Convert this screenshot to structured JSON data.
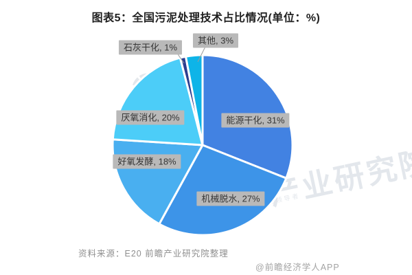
{
  "title": "图表5：全国污泥处理技术占比情况(单位：%)",
  "chart_data": {
    "type": "pie",
    "title": "图表5：全国污泥处理技术占比情况(单位：%)",
    "unit": "%",
    "start_angle_deg": 0,
    "direction": "clockwise",
    "slices": [
      {
        "label": "能源干化",
        "value": 31,
        "color": "#4282E2"
      },
      {
        "label": "机械脱水",
        "value": 27,
        "color": "#3D94E8"
      },
      {
        "label": "好氧发酵",
        "value": 18,
        "color": "#49AFF0"
      },
      {
        "label": "厌氧消化",
        "value": 20,
        "color": "#4CCDF8"
      },
      {
        "label": "石灰干化",
        "value": 1,
        "color": "#2C3E90"
      },
      {
        "label": "其他",
        "value": 3,
        "color": "#0EB4E8"
      }
    ],
    "label_format": "{label}, {value}%",
    "callout_bg": "#B9B9B9",
    "callout_text_color": "#363636",
    "legend": "none",
    "grid": false
  },
  "source_note": "资料来源：E20 前瞻产业研究院整理",
  "attribution": "@前瞻经济学人APP",
  "watermark": {
    "brand_large": "前瞻产业研究院",
    "brand_small": "前瞻",
    "tagline": "中国产业咨询领导者",
    "logo": "qianzhan-fan-logo"
  }
}
